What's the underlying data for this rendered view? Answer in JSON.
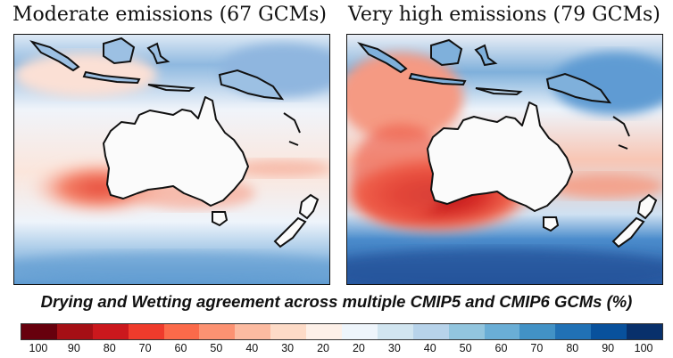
{
  "panels": [
    {
      "title": "Moderate emissions (67 GCMs)",
      "scenario": "moderate"
    },
    {
      "title": "Very high emissions (79 GCMs)",
      "scenario": "very-high"
    }
  ],
  "legend": {
    "title": "Drying and Wetting agreement across multiple CMIP5 and CMIP6 GCMs (%)",
    "ticks": [
      "100",
      "90",
      "80",
      "70",
      "60",
      "50",
      "40",
      "30",
      "20",
      "20",
      "30",
      "40",
      "50",
      "60",
      "70",
      "80",
      "90",
      "100"
    ],
    "colors": [
      "#67000d",
      "#a50f15",
      "#cb181d",
      "#ef3b2c",
      "#fb6a4a",
      "#fc9272",
      "#fcbba1",
      "#fddbc7",
      "#fdf0e8",
      "#eef5fb",
      "#d1e5f0",
      "#b7d3ea",
      "#92c5de",
      "#6aaed6",
      "#4292c6",
      "#2171b5",
      "#08519c",
      "#08306b"
    ]
  }
}
